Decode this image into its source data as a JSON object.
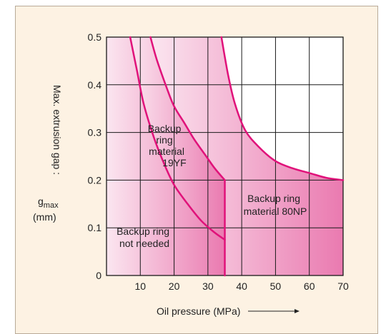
{
  "colors": {
    "background": "#fdf2e3",
    "plot": "#ffffff",
    "grid": "#1a1a1a",
    "curve": "#e0127a",
    "fill_light": "#fbe6f0",
    "fill_dark": "#ea7ab0"
  },
  "chart_data": {
    "type": "area",
    "xlabel": "Oil pressure (MPa)",
    "ylabel": {
      "line1": "Max. extrusion gap :",
      "symbol": "g",
      "subscript": "max",
      "unit": "(mm)"
    },
    "xlim": [
      0,
      70
    ],
    "ylim": [
      0,
      0.5
    ],
    "x_ticks": [
      "10",
      "20",
      "30",
      "40",
      "50",
      "60",
      "70"
    ],
    "y_ticks": [
      "0",
      "0.1",
      "0.2",
      "0.3",
      "0.4",
      "0.5"
    ],
    "grid": true,
    "series": [
      {
        "x": [
          7,
          9,
          11,
          14,
          17,
          20,
          24,
          28,
          32,
          35
        ],
        "y": [
          0.5,
          0.43,
          0.36,
          0.29,
          0.235,
          0.19,
          0.15,
          0.115,
          0.09,
          0.075
        ]
      },
      {
        "x": [
          13,
          15,
          18,
          20,
          23,
          26,
          29,
          32,
          35
        ],
        "y": [
          0.5,
          0.45,
          0.39,
          0.355,
          0.32,
          0.285,
          0.255,
          0.225,
          0.2
        ]
      },
      {
        "x": [
          34,
          36,
          38,
          41,
          45,
          50,
          55,
          60,
          65,
          70
        ],
        "y": [
          0.5,
          0.42,
          0.36,
          0.305,
          0.27,
          0.24,
          0.225,
          0.215,
          0.205,
          0.2
        ]
      }
    ],
    "regions": [
      {
        "lines": [
          "Backup ring",
          "not needed"
        ]
      },
      {
        "lines": [
          "Backup",
          "ring",
          "material",
          "19YF"
        ]
      },
      {
        "lines": [
          "Backup ring",
          "material 80NP"
        ]
      }
    ]
  }
}
